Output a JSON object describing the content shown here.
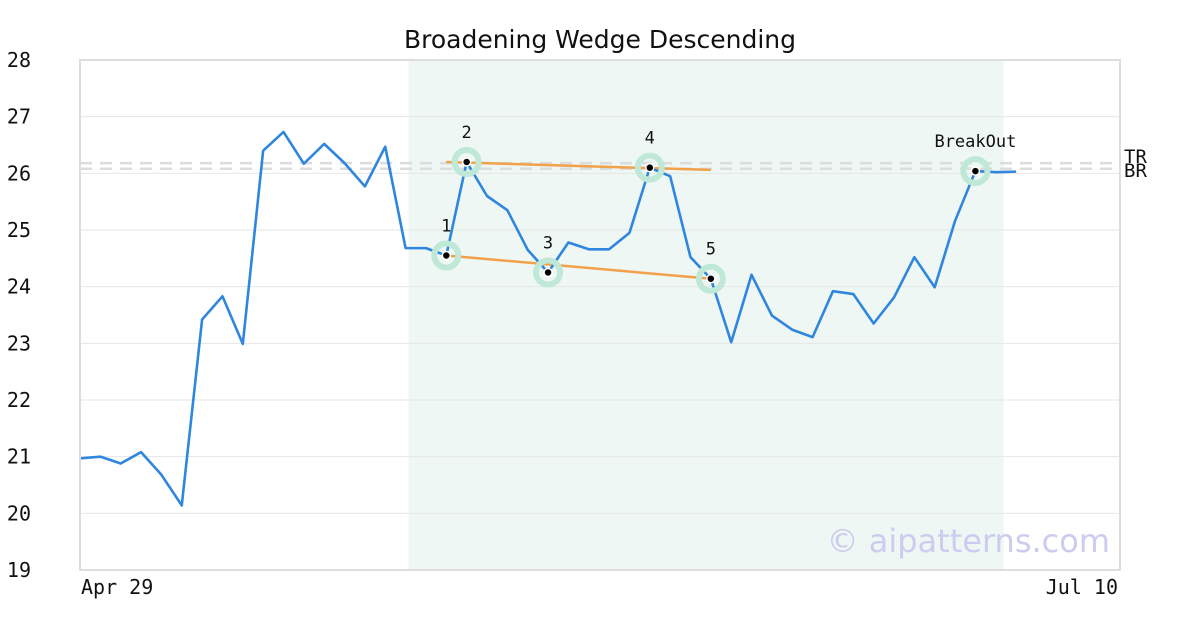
{
  "chart_data": {
    "type": "line",
    "title": "Broadening Wedge Descending",
    "xlabel": "",
    "ylabel": "",
    "ylim": [
      19,
      28
    ],
    "yticks": [
      19,
      20,
      21,
      22,
      23,
      24,
      25,
      26,
      27,
      28
    ],
    "xtick_labels": [
      "Apr 29",
      "Jul 10"
    ],
    "grid": true,
    "series": [
      {
        "color": "#2f86de",
        "values": [
          20.97,
          21.0,
          20.88,
          21.08,
          20.68,
          20.14,
          23.42,
          23.83,
          22.99,
          26.4,
          26.73,
          26.17,
          26.52,
          26.18,
          25.77,
          26.47,
          24.68,
          24.68,
          24.55,
          26.2,
          25.6,
          25.35,
          24.65,
          24.25,
          24.78,
          24.66,
          24.66,
          24.95,
          26.1,
          25.95,
          24.52,
          24.14,
          23.02,
          24.21,
          23.49,
          23.24,
          23.11,
          23.92,
          23.87,
          23.35,
          23.81,
          24.52,
          23.99,
          25.16,
          26.04,
          26.02,
          26.03
        ]
      }
    ],
    "pattern_window": {
      "start_index": 16,
      "end_index": 45,
      "color": "#eef7f3"
    },
    "pattern_points": [
      {
        "label": "1",
        "index": 18,
        "value": 24.55
      },
      {
        "label": "2",
        "index": 19,
        "value": 26.2
      },
      {
        "label": "3",
        "index": 23,
        "value": 24.25
      },
      {
        "label": "4",
        "index": 28,
        "value": 26.1
      },
      {
        "label": "5",
        "index": 31,
        "value": 24.14
      },
      {
        "label": "BreakOut",
        "index": 44,
        "value": 26.04
      }
    ],
    "trend_lines": [
      {
        "from_index": 18,
        "from_value": 24.55,
        "to_index": 31,
        "to_value": 24.14,
        "color": "#f2a04a"
      },
      {
        "from_index": 18,
        "from_value": 26.2,
        "to_index": 31,
        "to_value": 26.06,
        "color": "#f2a04a"
      }
    ],
    "reference_lines": [
      {
        "label": "TR",
        "value": 26.18
      },
      {
        "label": "BR",
        "value": 26.08
      }
    ],
    "watermark": "© aipatterns.com"
  }
}
